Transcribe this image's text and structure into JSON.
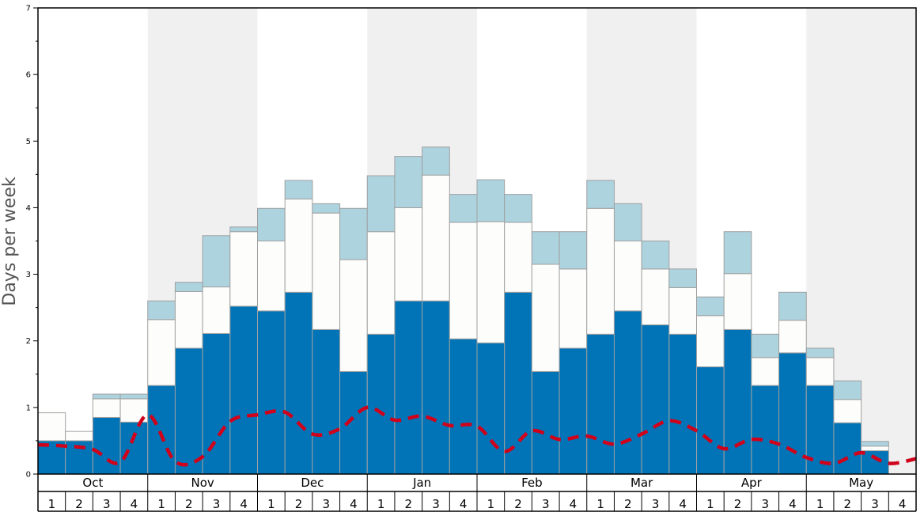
{
  "chart_data": {
    "type": "bar",
    "ylabel": "Days per week",
    "ylim": [
      0,
      7
    ],
    "yticks": [
      0,
      1,
      2,
      3,
      4,
      5,
      6,
      7
    ],
    "months": [
      "Oct",
      "Nov",
      "Dec",
      "Jan",
      "Feb",
      "Mar",
      "Apr",
      "May"
    ],
    "week_labels": [
      "1",
      "2",
      "3",
      "4"
    ],
    "stacked": true,
    "series": [
      {
        "values": [
          0.5,
          0.5,
          0.85,
          0.78,
          1.33,
          1.89,
          2.11,
          2.52,
          2.45,
          2.73,
          2.17,
          1.54,
          2.1,
          2.6,
          2.6,
          2.03,
          1.97,
          2.73,
          1.54,
          1.89,
          2.1,
          2.45,
          2.24,
          2.1,
          1.61,
          2.17,
          1.33,
          1.82,
          1.33,
          0.77,
          0.35,
          0
        ]
      },
      {
        "values": [
          0.42,
          0.14,
          0.28,
          0.35,
          0.99,
          0.85,
          0.7,
          1.12,
          1.05,
          1.4,
          1.75,
          1.68,
          1.54,
          1.4,
          1.89,
          1.75,
          1.82,
          1.05,
          1.61,
          1.19,
          1.89,
          1.05,
          0.84,
          0.7,
          0.77,
          0.84,
          0.42,
          0.49,
          0.42,
          0.35,
          0.07,
          0
        ]
      },
      {
        "values": [
          0,
          0,
          0.07,
          0.07,
          0.28,
          0.14,
          0.77,
          0.07,
          0.49,
          0.28,
          0.14,
          0.77,
          0.84,
          0.77,
          0.42,
          0.42,
          0.63,
          0.42,
          0.49,
          0.56,
          0.42,
          0.56,
          0.42,
          0.28,
          0.28,
          0.63,
          0.35,
          0.42,
          0.14,
          0.28,
          0.07,
          0
        ]
      }
    ],
    "line": {
      "values": [
        0.44,
        0.42,
        0.37,
        0.18,
        0.89,
        0.19,
        0.26,
        0.79,
        0.89,
        0.93,
        0.6,
        0.68,
        1.0,
        0.81,
        0.87,
        0.73,
        0.72,
        0.34,
        0.65,
        0.52,
        0.57,
        0.45,
        0.6,
        0.8,
        0.65,
        0.38,
        0.52,
        0.45,
        0.25,
        0.16,
        0.32,
        0.16,
        0.23
      ]
    },
    "colors": {
      "series": [
        "#0074b7",
        "#fdfdfb",
        "#add3df"
      ],
      "line": "#d0021b",
      "band": "#f0f0f0",
      "bar_stroke": "#a0a0a0"
    }
  }
}
